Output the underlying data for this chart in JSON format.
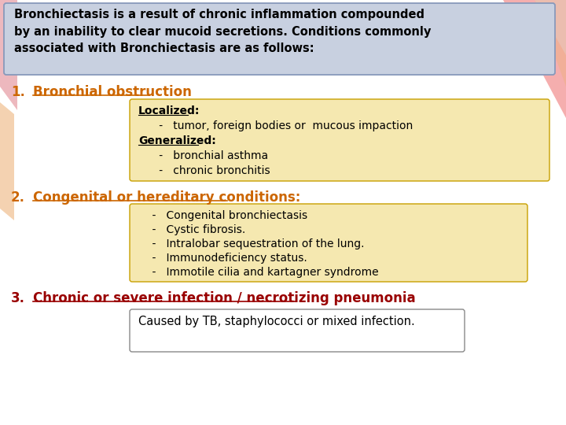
{
  "bg_color": "#ffffff",
  "header_box_color": "#c8d0e0",
  "header_box_border": "#8899bb",
  "header_text_line1": "Bronchiectasis is a result of chronic inflammation compounded",
  "header_text_line2": "by an inability to clear mucoid secretions. Conditions commonly",
  "header_text_line3": "associated with Bronchiectasis are as follows:",
  "header_text_color": "#000000",
  "item1_label": "1.",
  "item1_text": "Bronchial obstruction",
  "item1_color": "#cc6600",
  "box1_color": "#f5e8b0",
  "box1_border": "#c8a000",
  "box1_lines": [
    {
      "text": "Localized:",
      "bold": true,
      "underline": true,
      "indent": 0
    },
    {
      "text": "      -   tumor, foreign bodies or  mucous impaction",
      "bold": false,
      "underline": false,
      "indent": 0
    },
    {
      "text": "Generalized:",
      "bold": true,
      "underline": true,
      "indent": 0
    },
    {
      "text": "      -   bronchial asthma",
      "bold": false,
      "underline": false,
      "indent": 0
    },
    {
      "text": "      -   chronic bronchitis",
      "bold": false,
      "underline": false,
      "indent": 0
    }
  ],
  "item2_label": "2.",
  "item2_text": "Congenital or hereditary conditions:",
  "item2_color": "#cc6600",
  "box2_color": "#f5e8b0",
  "box2_border": "#c8a000",
  "box2_lines": [
    {
      "text": "    -   Congenital bronchiectasis",
      "bold": false,
      "underline": false
    },
    {
      "text": "    -   Cystic fibrosis.",
      "bold": false,
      "underline": false
    },
    {
      "text": "    -   Intralobar sequestration of the lung.",
      "bold": false,
      "underline": false
    },
    {
      "text": "    -   Immunodeficiency status.",
      "bold": false,
      "underline": false
    },
    {
      "text": "    -   Immotile cilia and kartagner syndrome",
      "bold": false,
      "underline": false
    }
  ],
  "item3_label": "3.",
  "item3_text": "Chronic or severe infection / necrotizing pneumonia",
  "item3_color": "#990000",
  "box3_color": "#ffffff",
  "box3_border": "#888888",
  "box3_lines": [
    {
      "text": "Caused by TB, staphylococci or mixed infection.",
      "bold": false,
      "underline": false
    }
  ],
  "stripe_top_right": [
    "#f4a0a0",
    "#f0b8a0",
    "#e8c8c0"
  ],
  "stripe_left_top": "#e8a0a8",
  "stripe_left_mid": "#f0c090"
}
